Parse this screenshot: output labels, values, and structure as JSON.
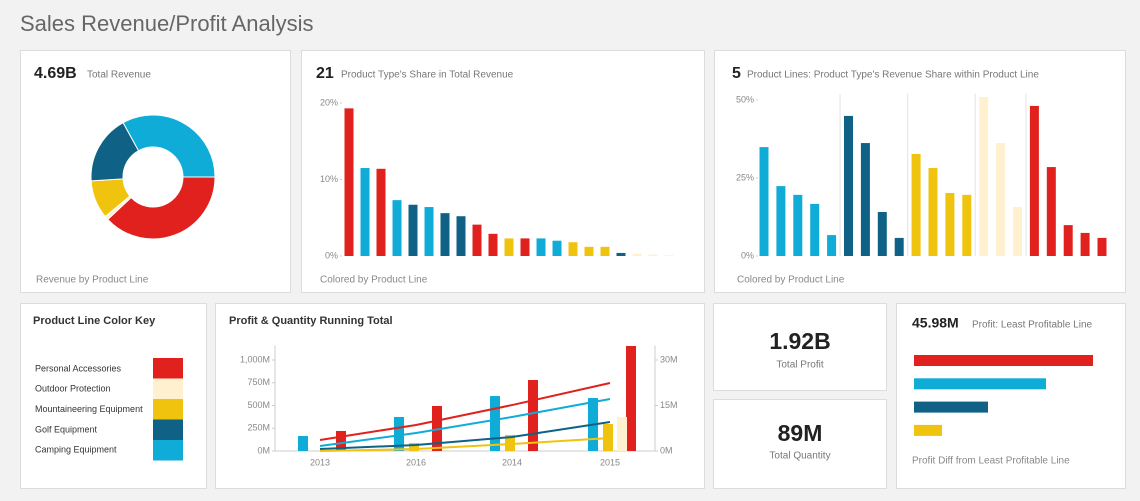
{
  "title": "Sales Revenue/Profit Analysis",
  "chart_data": [
    {
      "type": "pie",
      "donut": true,
      "kpi": "4.69B",
      "kpi_label": "Total Revenue",
      "footer": "Revenue by Product Line",
      "values": [
        38,
        1,
        10,
        18,
        33
      ],
      "colors": [
        "#e0211d",
        "#fff1d0",
        "#f0c30f",
        "#0f6285",
        "#10acd8"
      ]
    },
    {
      "type": "bar",
      "kpi": "21",
      "kpi_label": "Product Type's Share in Total Revenue",
      "footer": "Colored by Product Line",
      "values": [
        19.3,
        11.5,
        11.4,
        7.3,
        6.7,
        6.4,
        5.6,
        5.2,
        4.1,
        2.9,
        2.3,
        2.3,
        2.3,
        2.0,
        1.8,
        1.2,
        1.2,
        0.4,
        0.3,
        0.2,
        0.1
      ],
      "colors": [
        "#e0211d",
        "#10acd8",
        "#e0211d",
        "#10acd8",
        "#0f6285",
        "#10acd8",
        "#0f6285",
        "#0f6285",
        "#e0211d",
        "#e0211d",
        "#f0c30f",
        "#e0211d",
        "#10acd8",
        "#10acd8",
        "#f0c30f",
        "#f0c30f",
        "#f0c30f",
        "#0f6285",
        "#fff1d0",
        "#fff1d0",
        "#fff1d0"
      ],
      "ylim": [
        0,
        21
      ],
      "yticks": [
        {
          "value": 0,
          "label": "0%"
        },
        {
          "value": 10,
          "label": "10%"
        },
        {
          "value": 20,
          "label": "20%"
        }
      ]
    },
    {
      "type": "bar",
      "kpi": "5",
      "kpi_label": "Product Lines: Product Type's Revenue Share within Product Line",
      "footer": "Colored by Product Line",
      "values": [
        34.9,
        22.4,
        19.6,
        16.7,
        6.7,
        44.9,
        36.2,
        14.1,
        5.8,
        32.7,
        28.2,
        20.2,
        19.6,
        51,
        36.2,
        15.7,
        48.1,
        28.5,
        9.9,
        7.4,
        5.8
      ],
      "colors": [
        "#10acd8",
        "#10acd8",
        "#10acd8",
        "#10acd8",
        "#10acd8",
        "#0f6285",
        "#0f6285",
        "#0f6285",
        "#0f6285",
        "#f0c30f",
        "#f0c30f",
        "#f0c30f",
        "#f0c30f",
        "#fff1d0",
        "#fff1d0",
        "#fff1d0",
        "#e0211d",
        "#e0211d",
        "#e0211d",
        "#e0211d",
        "#e0211d"
      ],
      "ylim": [
        0,
        52
      ],
      "yticks": [
        {
          "value": 0,
          "label": "0%"
        },
        {
          "value": 25,
          "label": "25%"
        },
        {
          "value": 50,
          "label": "50%"
        }
      ]
    },
    {
      "type": "combo",
      "title": "Profit & Quantity Running Total",
      "categories": [
        "2013",
        "2016",
        "2014",
        "2015"
      ],
      "series": [
        {
          "kind": "bar",
          "color": "#10acd8",
          "values": [
            165,
            374,
            604,
            582
          ]
        },
        {
          "kind": "bar",
          "color": "#f0c30f",
          "values": [
            null,
            88,
            176,
            297
          ]
        },
        {
          "kind": "bar",
          "color": "#e0211d",
          "values": [
            220,
            495,
            780,
            1154
          ]
        },
        {
          "kind": "bar",
          "color": "#fff1d0",
          "values": [
            null,
            null,
            null,
            374
          ]
        },
        {
          "kind": "line",
          "color": "#e0211d",
          "values": [
            121,
            286,
            505,
            747
          ]
        },
        {
          "kind": "line",
          "color": "#10acd8",
          "values": [
            55,
            198,
            374,
            571
          ]
        },
        {
          "kind": "line",
          "color": "#0f6285",
          "values": [
            22,
            66,
            154,
            319
          ]
        },
        {
          "kind": "line",
          "color": "#f0c30f",
          "values": [
            0,
            22,
            77,
            143
          ]
        }
      ],
      "ylim": [
        0,
        1160
      ],
      "yticks": [
        {
          "value": 0,
          "label": "0M"
        },
        {
          "value": 250,
          "label": "250M"
        },
        {
          "value": 500,
          "label": "500M"
        },
        {
          "value": 750,
          "label": "750M"
        },
        {
          "value": 1000,
          "label": "1,000M"
        }
      ],
      "y2lim": [
        0,
        34.8
      ],
      "y2ticks": [
        {
          "value": 0,
          "label": "0M"
        },
        {
          "value": 15,
          "label": "15M"
        },
        {
          "value": 30,
          "label": "30M"
        }
      ]
    },
    {
      "type": "hbar",
      "kpi": "45.98M",
      "kpi_label": "Profit: Least Profitable Line",
      "footer": "Profit Diff from Least Profitable Line",
      "values": [
        179,
        132,
        74,
        28
      ],
      "colors": [
        "#e0211d",
        "#10acd8",
        "#0f6285",
        "#f0c30f"
      ]
    }
  ],
  "color_key": {
    "title": "Product Line Color Key",
    "items": [
      {
        "name": "Personal Accessories",
        "color": "#e0211d"
      },
      {
        "name": "Outdoor Protection",
        "color": "#fff1d0"
      },
      {
        "name": "Mountaineering Equipment",
        "color": "#f0c30f"
      },
      {
        "name": "Golf Equipment",
        "color": "#0f6285"
      },
      {
        "name": "Camping Equipment",
        "color": "#10acd8"
      }
    ]
  },
  "kpis": [
    {
      "value": "1.92B",
      "label": "Total Profit"
    },
    {
      "value": "89M",
      "label": "Total Quantity"
    }
  ]
}
